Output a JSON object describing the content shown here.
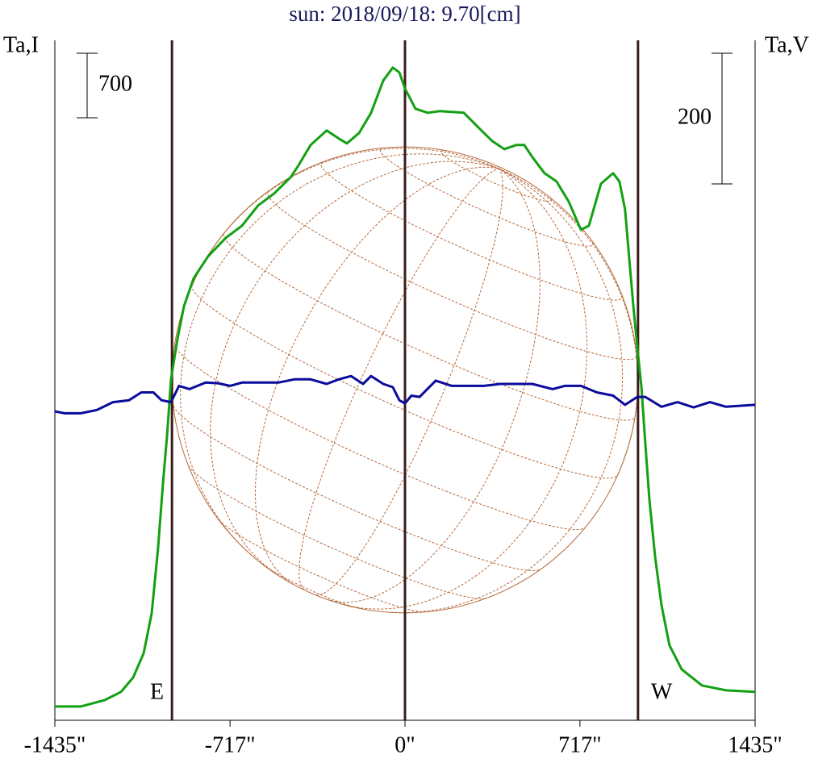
{
  "chart_data": {
    "type": "line",
    "title": "sun: 2018/09/18: 9.70[cm]",
    "y_label": "Ta,I",
    "y2_label": "Ta,V",
    "xlim": [
      -1435,
      1435
    ],
    "xticks": [
      {
        "value": -1435,
        "label": "-1435\""
      },
      {
        "value": -717,
        "label": "-717\""
      },
      {
        "value": 0,
        "label": "0\""
      },
      {
        "value": 717,
        "label": "717\""
      },
      {
        "value": 1435,
        "label": "1435\""
      }
    ],
    "ylim": [
      -150,
      7226
    ],
    "y2lim": [
      -485,
      556
    ],
    "left_scale": 700,
    "right_scale": 200,
    "center_line_x": 0,
    "limbs": [
      {
        "label": "E",
        "x": -955
      },
      {
        "label": "W",
        "x": 955
      }
    ],
    "series": [
      {
        "color": "#13a013",
        "axis": "y",
        "x": [
          -1435,
          -1329,
          -1230,
          -1164,
          -1114,
          -1071,
          -1038,
          -1012,
          -992,
          -975,
          -959,
          -932,
          -906,
          -866,
          -807,
          -734,
          -668,
          -602,
          -536,
          -469,
          -436,
          -387,
          -321,
          -271,
          -238,
          -188,
          -139,
          -89,
          -50,
          -23,
          0,
          43,
          93,
          142,
          241,
          307,
          357,
          407,
          456,
          489,
          522,
          572,
          621,
          671,
          721,
          754,
          803,
          853,
          879,
          902,
          919,
          936,
          952,
          969,
          985,
          1002,
          1025,
          1051,
          1084,
          1134,
          1217,
          1316,
          1435
        ],
        "values": [
          0,
          0,
          70,
          158,
          315,
          578,
          1015,
          1715,
          2415,
          2940,
          3553,
          3990,
          4340,
          4646,
          4883,
          5084,
          5215,
          5434,
          5565,
          5740,
          5871,
          6090,
          6248,
          6160,
          6108,
          6221,
          6440,
          6790,
          6930,
          6878,
          6703,
          6484,
          6440,
          6458,
          6440,
          6265,
          6134,
          6046,
          6090,
          6090,
          5959,
          5784,
          5696,
          5478,
          5171,
          5215,
          5670,
          5784,
          5696,
          5390,
          4865,
          4340,
          3903,
          3465,
          2853,
          2240,
          1628,
          1103,
          665,
          403,
          228,
          175,
          158
        ]
      },
      {
        "color": "#0b0b9c",
        "axis": "y2",
        "x": [
          -1435,
          -1395,
          -1329,
          -1263,
          -1197,
          -1131,
          -1081,
          -1031,
          -998,
          -959,
          -926,
          -883,
          -817,
          -767,
          -717,
          -668,
          -602,
          -519,
          -453,
          -387,
          -321,
          -271,
          -221,
          -172,
          -139,
          -89,
          -50,
          -23,
          0,
          26,
          60,
          126,
          192,
          258,
          324,
          390,
          522,
          605,
          655,
          721,
          787,
          853,
          902,
          952,
          985,
          1051,
          1117,
          1183,
          1250,
          1316,
          1435
        ],
        "values": [
          -12,
          -15,
          -15,
          -10,
          2,
          5,
          17,
          17,
          5,
          2,
          27,
          22,
          32,
          31,
          27,
          32,
          32,
          32,
          37,
          37,
          30,
          37,
          42,
          30,
          42,
          30,
          25,
          5,
          0,
          12,
          10,
          35,
          27,
          27,
          27,
          30,
          30,
          22,
          27,
          27,
          17,
          12,
          -2,
          10,
          10,
          -5,
          2,
          -6,
          2,
          -5,
          -2
        ]
      }
    ]
  }
}
